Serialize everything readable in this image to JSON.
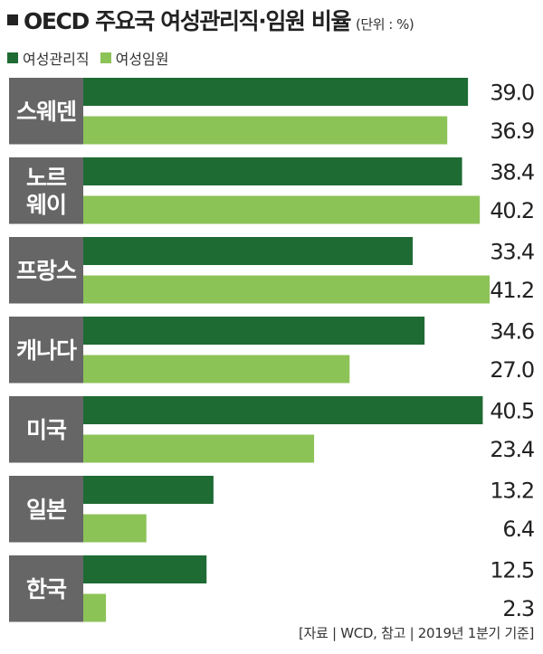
{
  "chart_data": {
    "type": "bar",
    "orientation": "horizontal",
    "title": "OECD 주요국 여성관리직·임원 비율",
    "unit_note": "(단위 : %)",
    "categories": [
      "스웨덴",
      "노르\n웨이",
      "프랑스",
      "캐나다",
      "미국",
      "일본",
      "한국"
    ],
    "series": [
      {
        "name": "여성관리직",
        "color": "#1e6b34",
        "values": [
          39.0,
          38.4,
          33.4,
          34.6,
          40.5,
          13.2,
          12.5
        ]
      },
      {
        "name": "여성임원",
        "color": "#8cc357",
        "values": [
          36.9,
          40.2,
          41.2,
          27.0,
          23.4,
          6.4,
          2.3
        ]
      }
    ],
    "xlim": [
      0,
      42
    ],
    "grid": false,
    "legend_position": "top-left",
    "source": "[자료 | WCD, 참고 | 2019년 1분기 기준]"
  },
  "colors": {
    "category_box": "#666666",
    "dark_green": "#1e6b34",
    "light_green": "#8cc357"
  },
  "icons": {
    "title_marker": "black-square-icon"
  }
}
